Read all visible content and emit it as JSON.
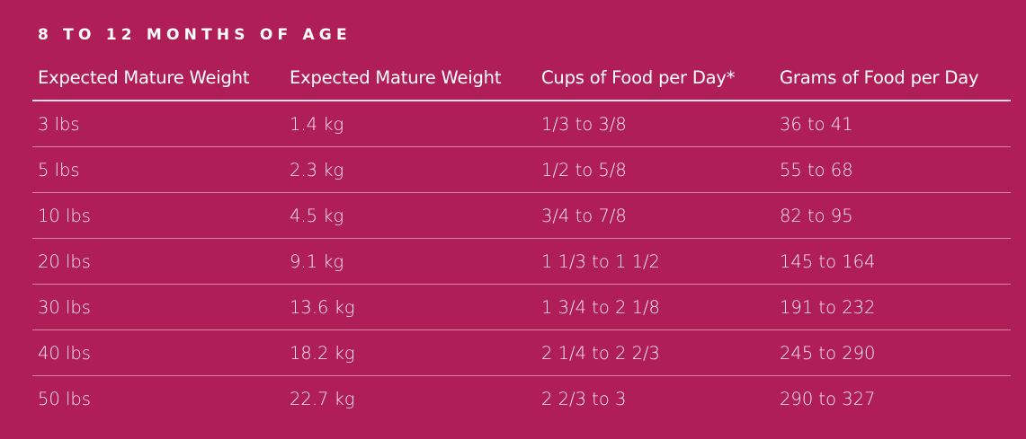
{
  "section": {
    "title": "8 TO 12 MONTHS OF AGE"
  },
  "table": {
    "headers": [
      "Expected Mature Weight",
      "Expected Mature Weight",
      "Cups of Food per Day*",
      "Grams of Food per Day"
    ],
    "rows": [
      [
        "3 lbs",
        "1.4 kg",
        "1/3 to 3/8",
        "36 to 41"
      ],
      [
        "5 lbs",
        "2.3 kg",
        "1/2 to 5/8",
        "55 to 68"
      ],
      [
        "10 lbs",
        "4.5 kg",
        "3/4 to 7/8",
        "82 to 95"
      ],
      [
        "20 lbs",
        "9.1 kg",
        "1 1/3 to 1 1/2",
        "145 to 164"
      ],
      [
        "30 lbs",
        "13.6 kg",
        "1 3/4 to 2 1/8",
        "191 to 232"
      ],
      [
        "40 lbs",
        "18.2 kg",
        "2 1/4 to 2 2/3",
        "245 to 290"
      ],
      [
        "50 lbs",
        "22.7 kg",
        "2 2/3 to 3",
        "290 to 327"
      ]
    ]
  },
  "colors": {
    "background": "#b01e57",
    "text": "#ffffff",
    "divider": "#d9879f"
  }
}
